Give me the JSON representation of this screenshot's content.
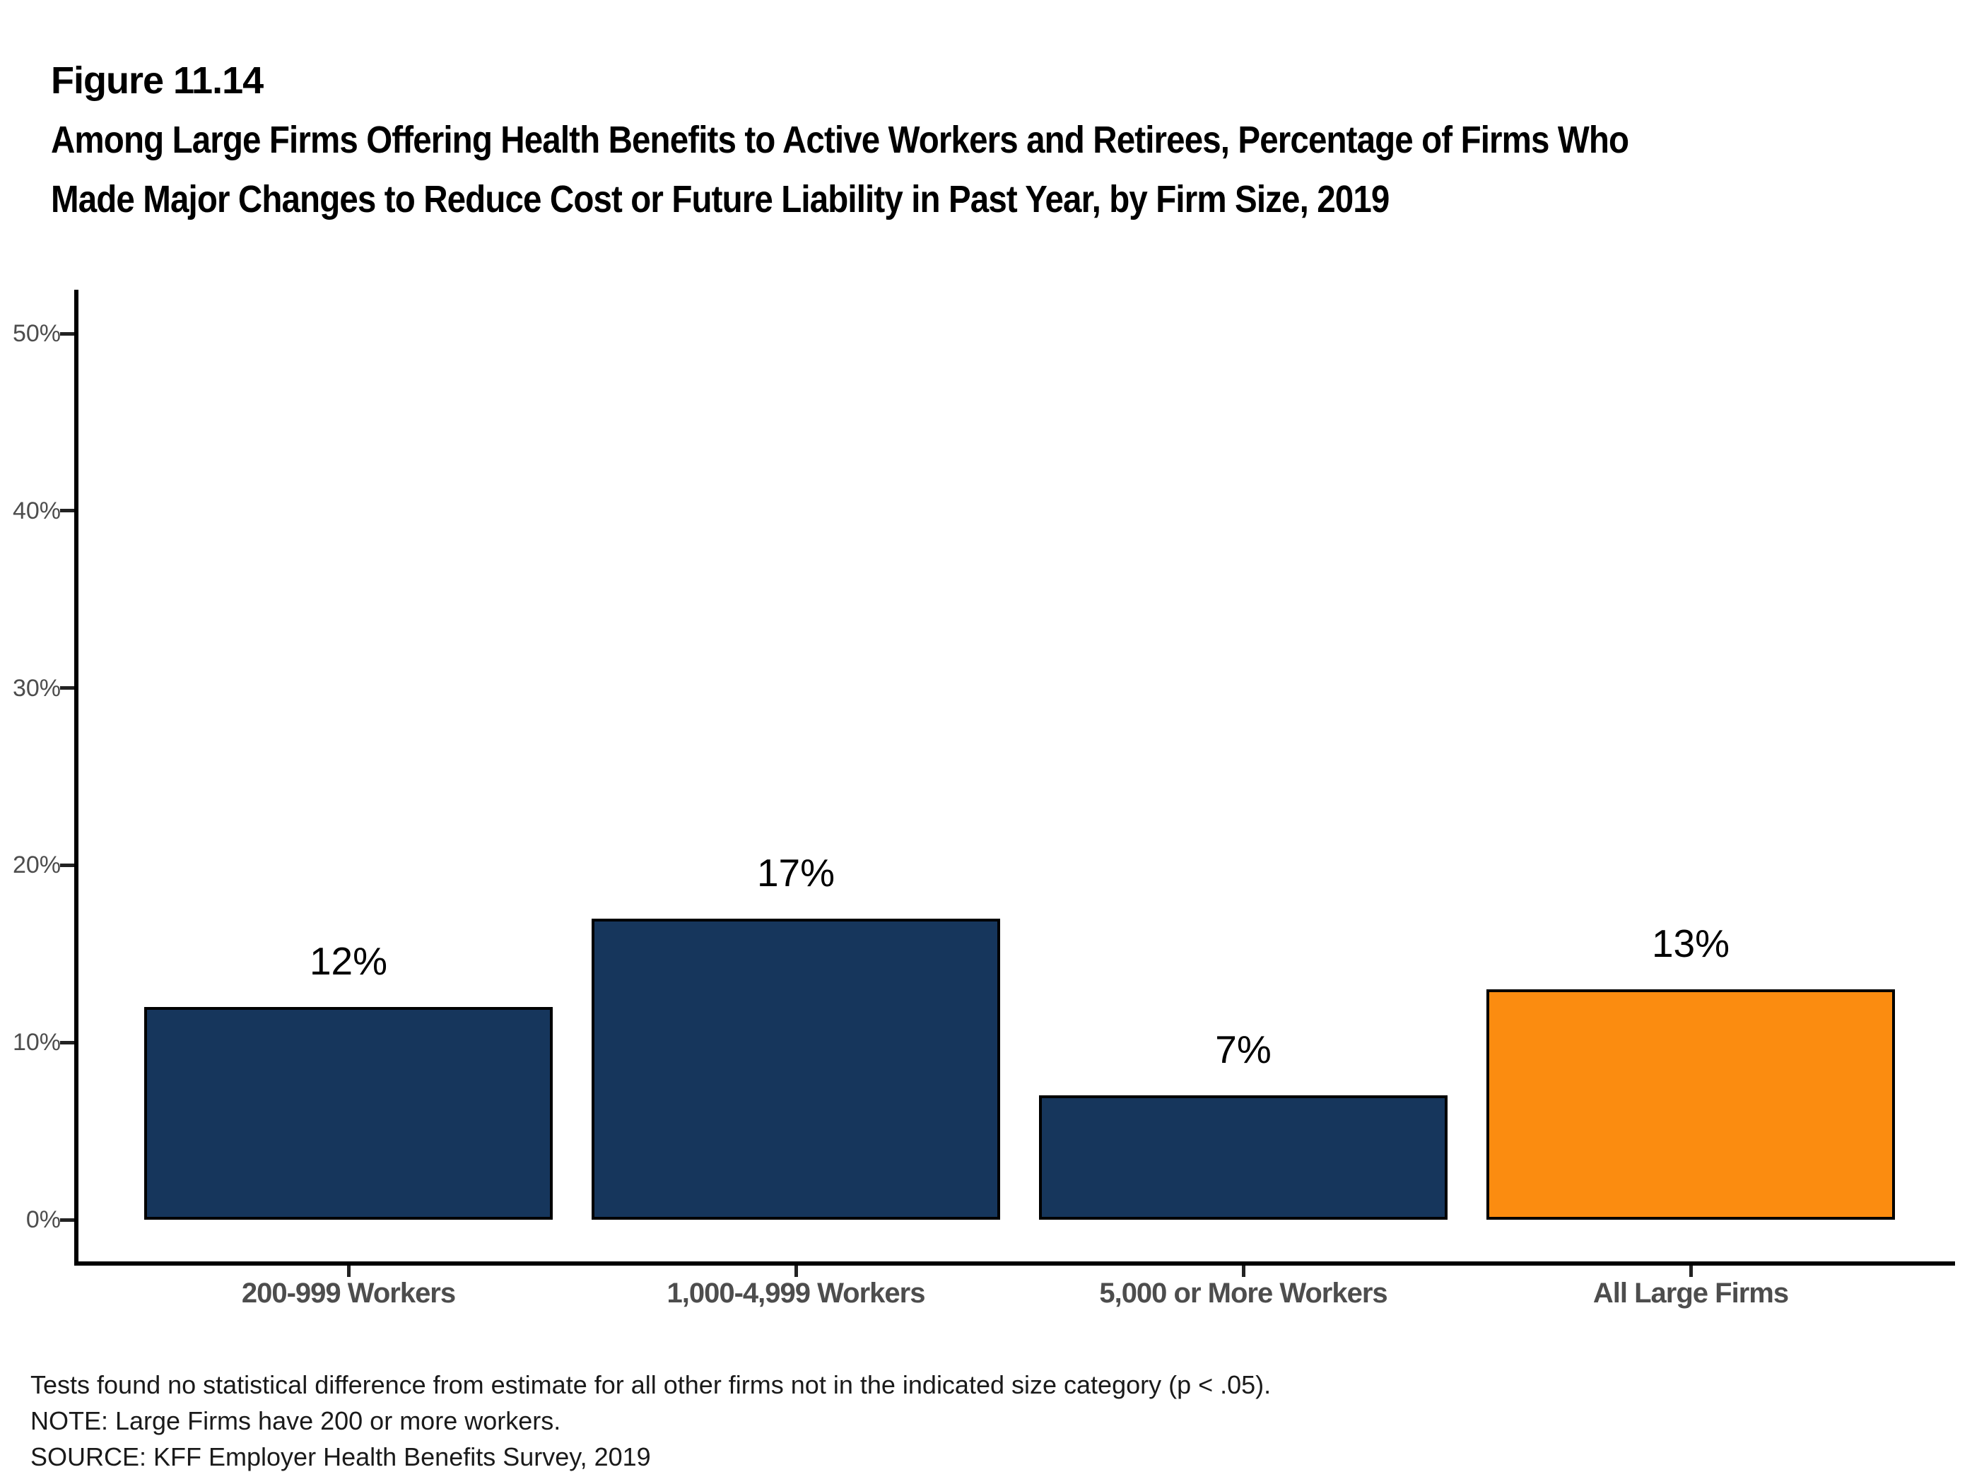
{
  "figure_label": "Figure 11.14",
  "title": "Among Large Firms Offering Health Benefits to Active Workers and Retirees, Percentage of Firms Who Made Major Changes to Reduce Cost or Future Liability in Past Year, by Firm Size, 2019",
  "chart_data": {
    "type": "bar",
    "categories": [
      "200-999 Workers",
      "1,000-4,999 Workers",
      "5,000 or More Workers",
      "All Large Firms"
    ],
    "values": [
      12,
      17,
      7,
      13
    ],
    "value_labels": [
      "12%",
      "17%",
      "7%",
      "13%"
    ],
    "bar_colors": [
      "#16365C",
      "#16365C",
      "#16365C",
      "#FB8C10"
    ],
    "title": "",
    "xlabel": "",
    "ylabel": "",
    "ylim": [
      0,
      50
    ],
    "yticks": [
      0,
      10,
      20,
      30,
      40,
      50
    ],
    "ytick_labels": [
      "0%",
      "10%",
      "20%",
      "30%",
      "40%",
      "50%"
    ],
    "grid": false,
    "legend": "none"
  },
  "colors": {
    "navy": "#16365C",
    "orange": "#FB8C10",
    "axis": "#000000",
    "tick_label": "#4d4d4d",
    "category_label": "#4d4d4d",
    "value_label": "#000000"
  },
  "footnotes": [
    "Tests found no statistical difference from estimate for all other firms not in the indicated size category (p < .05).",
    "NOTE: Large Firms have 200 or more workers.",
    "SOURCE: KFF Employer Health Benefits Survey, 2019"
  ]
}
